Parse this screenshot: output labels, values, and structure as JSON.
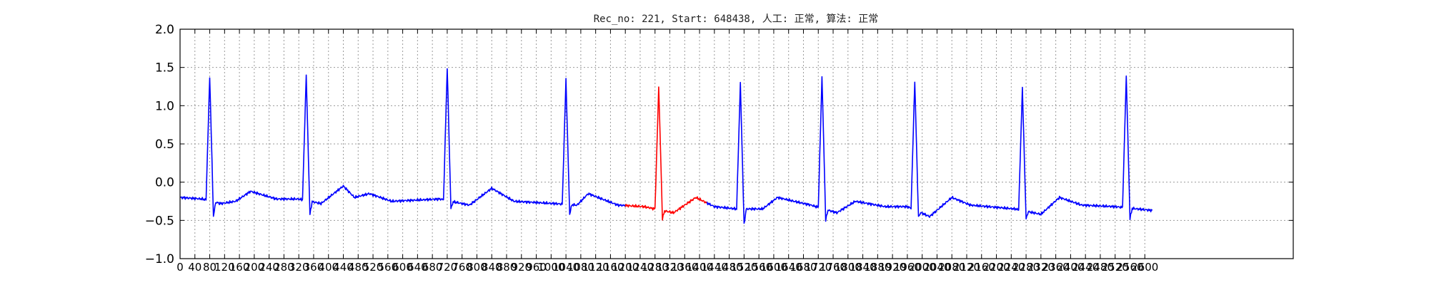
{
  "chart_data": {
    "type": "line",
    "title": "Rec_no: 221, Start: 648438, 人工: 正常, 算法: 正常",
    "xlabel": "",
    "ylabel": "",
    "xlim": [
      0,
      3000
    ],
    "ylim": [
      -1.0,
      2.0
    ],
    "grid": true,
    "y_ticks": [
      -1.0,
      -0.5,
      0.0,
      0.5,
      1.0,
      1.5,
      2.0
    ],
    "y_tick_labels": [
      "−1.0",
      "−0.5",
      "0.0",
      "0.5",
      "1.0",
      "1.5",
      "2.0"
    ],
    "x_ticks": [
      0,
      40,
      80,
      120,
      160,
      200,
      240,
      280,
      320,
      360,
      400,
      440,
      480,
      520,
      560,
      600,
      640,
      680,
      720,
      760,
      800,
      840,
      880,
      920,
      960,
      1000,
      1040,
      1080,
      1120,
      1160,
      1200,
      1240,
      1280,
      1320,
      1360,
      1400,
      1440,
      1480,
      1520,
      1560,
      1600,
      1640,
      1680,
      1720,
      1760,
      1800,
      1840,
      1880,
      1920,
      1960,
      2000,
      2040,
      2080,
      2120,
      2160,
      2200,
      2240,
      2280,
      2320,
      2360,
      2400,
      2440,
      2480,
      2520,
      2560,
      2600
    ],
    "x_tick_labels": [
      "0",
      "40",
      "80",
      "120",
      "160",
      "200",
      "240",
      "280",
      "320",
      "360",
      "400",
      "440",
      "480",
      "520",
      "560",
      "600",
      "640",
      "680",
      "720",
      "760",
      "800",
      "840",
      "880",
      "920",
      "960",
      "1000",
      "1040",
      "1080",
      "1120",
      "1160",
      "1200",
      "1240",
      "1280",
      "1320",
      "1360",
      "1400",
      "1440",
      "1480",
      "1520",
      "1560",
      "1600",
      "1640",
      "1680",
      "1720",
      "1760",
      "1800",
      "1840",
      "1880",
      "1920",
      "1960",
      "2000",
      "2040",
      "2080",
      "2120",
      "2160",
      "2200",
      "2240",
      "2280",
      "2320",
      "2360",
      "2400",
      "2440",
      "2480",
      "2520",
      "2560",
      "2600"
    ],
    "colors": {
      "main": "#0000ff",
      "highlight": "#ff0000",
      "grid": "#9a9a9a"
    },
    "series": [
      {
        "color": "#0000ff",
        "x_range": [
          0,
          1200
        ],
        "beats": [
          {
            "x": 80,
            "peak": 1.38,
            "trough": -0.45
          },
          {
            "x": 340,
            "peak": 1.4,
            "trough": -0.42
          },
          {
            "x": 720,
            "peak": 1.5,
            "trough": -0.35
          },
          {
            "x": 1040,
            "peak": 1.35,
            "trough": -0.42
          }
        ]
      },
      {
        "color": "#ff0000",
        "x_range": [
          1200,
          1420
        ],
        "beats": [
          {
            "x": 1290,
            "peak": 1.25,
            "trough": -0.48
          }
        ]
      },
      {
        "color": "#0000ff",
        "x_range": [
          1420,
          2620
        ],
        "beats": [
          {
            "x": 1510,
            "peak": 1.3,
            "trough": -0.55
          },
          {
            "x": 1730,
            "peak": 1.38,
            "trough": -0.5
          },
          {
            "x": 1980,
            "peak": 1.32,
            "trough": -0.46
          },
          {
            "x": 2270,
            "peak": 1.23,
            "trough": -0.48
          },
          {
            "x": 2550,
            "peak": 1.4,
            "trough": -0.48
          }
        ]
      }
    ],
    "baseline_points": [
      [
        0,
        -0.2
      ],
      [
        60,
        -0.22
      ],
      [
        110,
        -0.28
      ],
      [
        150,
        -0.25
      ],
      [
        190,
        -0.12
      ],
      [
        260,
        -0.22
      ],
      [
        320,
        -0.22
      ],
      [
        380,
        -0.28
      ],
      [
        440,
        -0.05
      ],
      [
        470,
        -0.2
      ],
      [
        510,
        -0.15
      ],
      [
        570,
        -0.25
      ],
      [
        700,
        -0.22
      ],
      [
        780,
        -0.3
      ],
      [
        840,
        -0.08
      ],
      [
        900,
        -0.25
      ],
      [
        1010,
        -0.28
      ],
      [
        1070,
        -0.3
      ],
      [
        1100,
        -0.15
      ],
      [
        1180,
        -0.3
      ],
      [
        1250,
        -0.32
      ],
      [
        1330,
        -0.4
      ],
      [
        1390,
        -0.2
      ],
      [
        1440,
        -0.32
      ],
      [
        1500,
        -0.35
      ],
      [
        1570,
        -0.35
      ],
      [
        1610,
        -0.2
      ],
      [
        1700,
        -0.3
      ],
      [
        1770,
        -0.4
      ],
      [
        1820,
        -0.25
      ],
      [
        1900,
        -0.32
      ],
      [
        1960,
        -0.32
      ],
      [
        2020,
        -0.45
      ],
      [
        2080,
        -0.2
      ],
      [
        2130,
        -0.3
      ],
      [
        2250,
        -0.35
      ],
      [
        2320,
        -0.42
      ],
      [
        2370,
        -0.2
      ],
      [
        2430,
        -0.3
      ],
      [
        2520,
        -0.32
      ],
      [
        2580,
        -0.35
      ],
      [
        2620,
        -0.37
      ]
    ]
  }
}
